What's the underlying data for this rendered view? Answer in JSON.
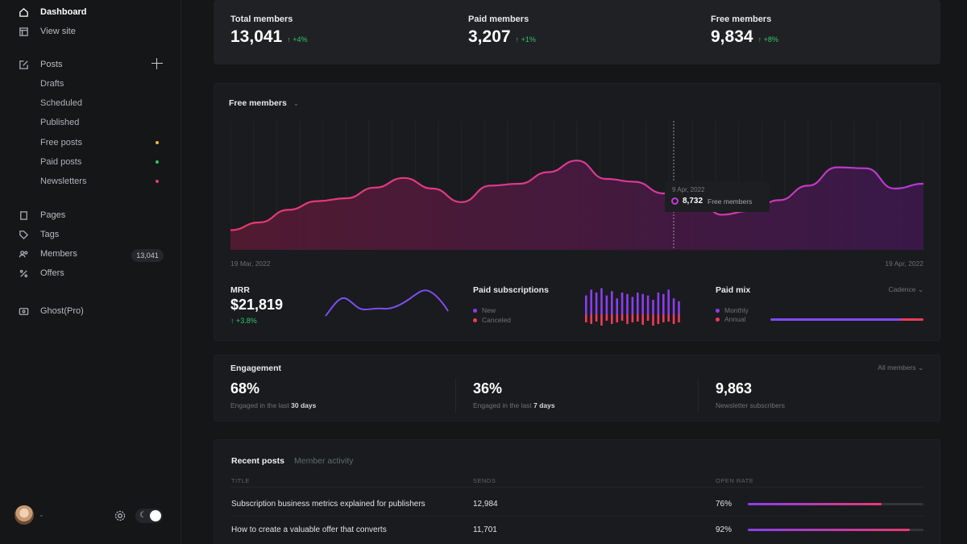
{
  "sidebar": {
    "items": [
      {
        "label": "Dashboard",
        "icon": "home-icon"
      },
      {
        "label": "View site",
        "icon": "layout-icon"
      },
      {
        "label": "Posts",
        "icon": "edit-icon"
      },
      {
        "label": "Pages",
        "icon": "page-icon"
      },
      {
        "label": "Tags",
        "icon": "tag-icon"
      },
      {
        "label": "Members",
        "icon": "members-icon",
        "badge": "13,041"
      },
      {
        "label": "Offers",
        "icon": "percent-icon"
      },
      {
        "label": "Ghost(Pro)",
        "icon": "ghost-pro-icon"
      }
    ],
    "sub_items": [
      {
        "label": "Drafts"
      },
      {
        "label": "Scheduled"
      },
      {
        "label": "Published"
      },
      {
        "label": "Free posts",
        "dot_color": "#f2b33d"
      },
      {
        "label": "Paid posts",
        "dot_color": "#36c26b"
      },
      {
        "label": "Newsletters",
        "dot_color": "#ef3b5b"
      }
    ]
  },
  "stats": [
    {
      "label": "Total members",
      "value": "13,041",
      "change": "↑ +4%"
    },
    {
      "label": "Paid members",
      "value": "3,207",
      "change": "↑ +1%"
    },
    {
      "label": "Free members",
      "value": "9,834",
      "change": "↑ +8%"
    }
  ],
  "main_chart": {
    "title": "Free members",
    "start_date": "19 Mar, 2022",
    "end_date": "19 Apr, 2022",
    "tooltip": {
      "date": "9 Apr, 2022",
      "value": "8,732",
      "unit": "Free members"
    }
  },
  "chart_data": {
    "type": "area",
    "title": "Free members",
    "x_range": [
      "19 Mar, 2022",
      "19 Apr, 2022"
    ],
    "values": [
      0.12,
      0.2,
      0.33,
      0.42,
      0.45,
      0.56,
      0.66,
      0.55,
      0.41,
      0.58,
      0.6,
      0.72,
      0.84,
      0.65,
      0.62,
      0.5,
      0.53,
      0.28,
      0.32,
      0.43,
      0.58,
      0.77,
      0.76,
      0.55,
      0.6
    ],
    "colors": {
      "line": "#e0367f",
      "accent_end": "#b23bd6"
    }
  },
  "mrr": {
    "label": "MRR",
    "value": "$21,819",
    "change": "↑ +3.8%"
  },
  "paid_subscriptions": {
    "label": "Paid subscriptions",
    "legend": [
      {
        "label": "New",
        "color": "#8a3ef0"
      },
      {
        "label": "Canceled",
        "color": "#ef3b5b"
      }
    ]
  },
  "paid_mix": {
    "label": "Paid mix",
    "dropdown": "Cadence ⌄",
    "legend": [
      {
        "label": "Monthly",
        "color": "#8a3ef0"
      },
      {
        "label": "Annual",
        "color": "#ef3b5b"
      }
    ]
  },
  "engagement": {
    "title": "Engagement",
    "filter": "All members ⌄",
    "items": [
      {
        "value": "68%",
        "prefix": "Engaged in the last ",
        "bold": "30 days"
      },
      {
        "value": "36%",
        "prefix": "Engaged in the last ",
        "bold": "7 days"
      },
      {
        "value": "9,863",
        "prefix": "Newsletter subscribers",
        "bold": ""
      }
    ]
  },
  "recent": {
    "tabs": [
      "Recent posts",
      "Member activity"
    ],
    "columns": [
      "TITLE",
      "SENDS",
      "OPEN RATE"
    ],
    "rows": [
      {
        "title": "Subscription business metrics explained for publishers",
        "sends": "12,984",
        "open_rate": "76%",
        "open_rate_value": 0.76
      },
      {
        "title": "How to create a valuable offer that converts",
        "sends": "11,701",
        "open_rate": "92%",
        "open_rate_value": 0.92
      }
    ]
  }
}
